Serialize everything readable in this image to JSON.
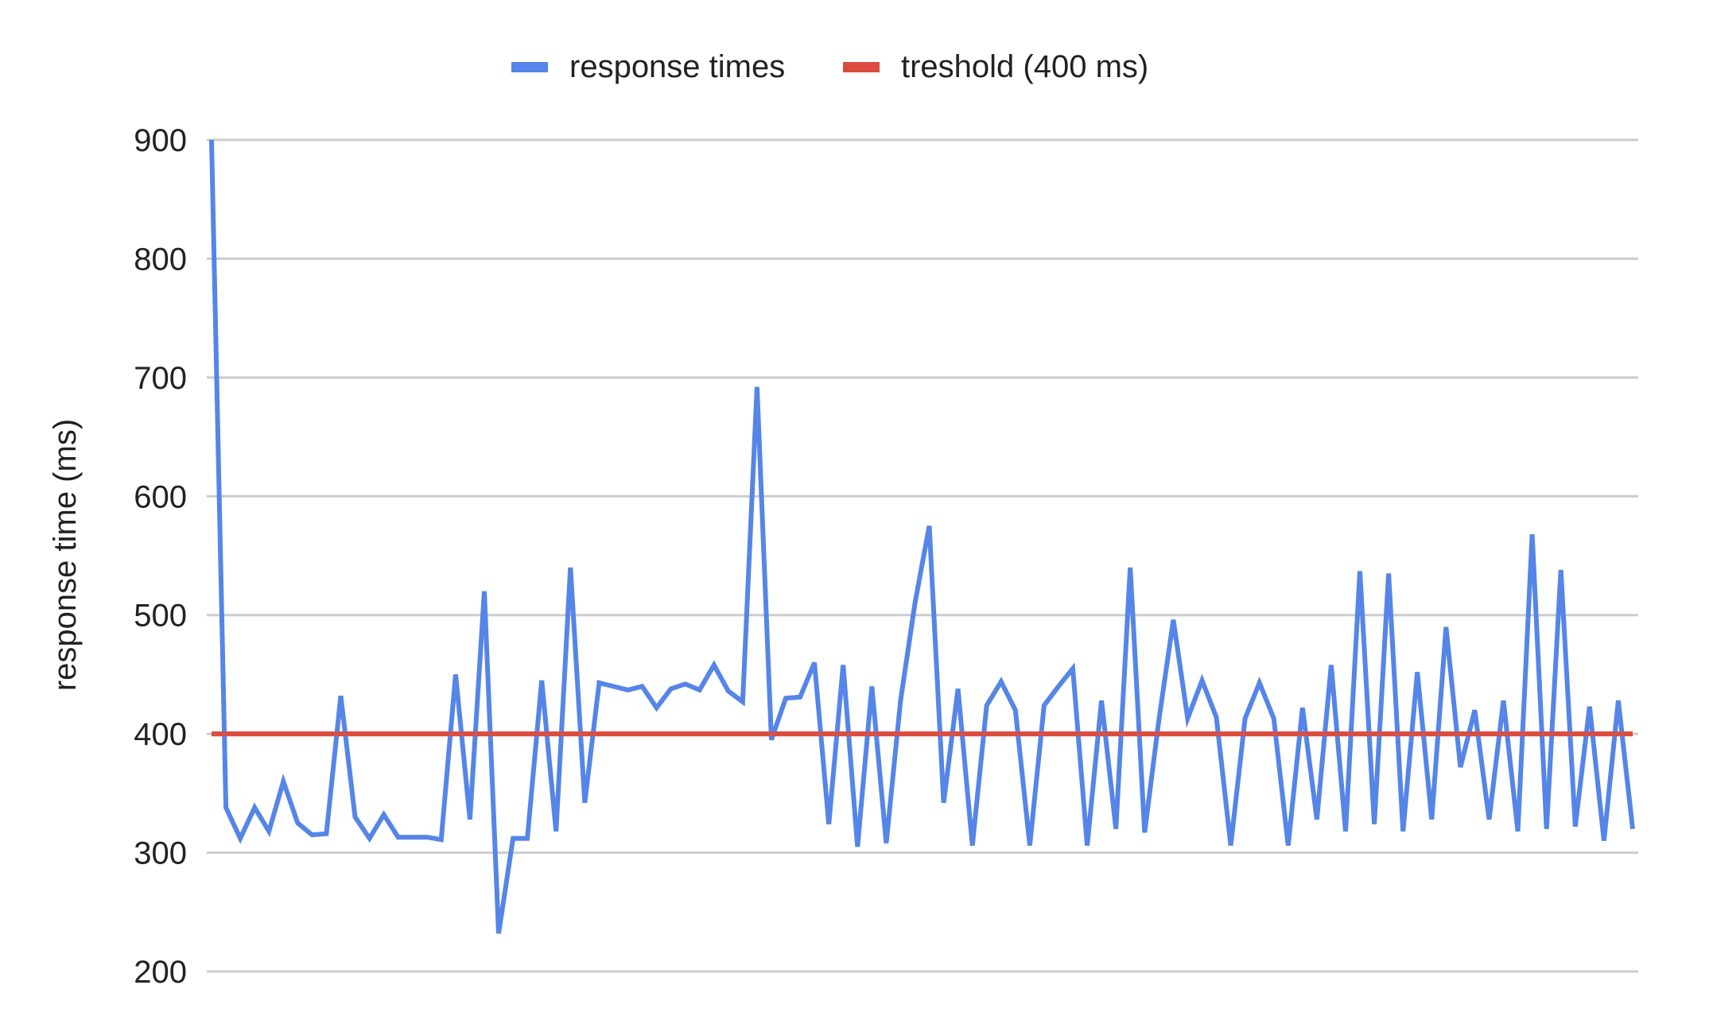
{
  "chart_data": {
    "type": "line",
    "ylabel": "response time (ms)",
    "ylim": [
      200,
      900
    ],
    "yticks": [
      200,
      300,
      400,
      500,
      600,
      700,
      800,
      900
    ],
    "grid": true,
    "legend_position": "top",
    "series": [
      {
        "name": "response times",
        "color": "#5585e8",
        "values": [
          900,
          338,
          312,
          338,
          318,
          360,
          325,
          315,
          316,
          432,
          330,
          312,
          332,
          313,
          313,
          313,
          311,
          450,
          328,
          520,
          232,
          312,
          312,
          445,
          318,
          540,
          342,
          443,
          440,
          437,
          440,
          422,
          438,
          442,
          437,
          458,
          436,
          427,
          692,
          395,
          430,
          431,
          460,
          324,
          458,
          305,
          440,
          308,
          428,
          510,
          575,
          342,
          438,
          306,
          424,
          444,
          420,
          306,
          424,
          440,
          455,
          306,
          428,
          320,
          540,
          317,
          412,
          496,
          413,
          445,
          414,
          306,
          413,
          443,
          413,
          306,
          422,
          328,
          458,
          318,
          537,
          324,
          535,
          318,
          452,
          328,
          490,
          372,
          420,
          328,
          428,
          318,
          568,
          320,
          538,
          322,
          423,
          310,
          428,
          320
        ]
      },
      {
        "name": "treshold (400 ms)",
        "color": "#dc4c3e",
        "constant": 400
      }
    ]
  }
}
